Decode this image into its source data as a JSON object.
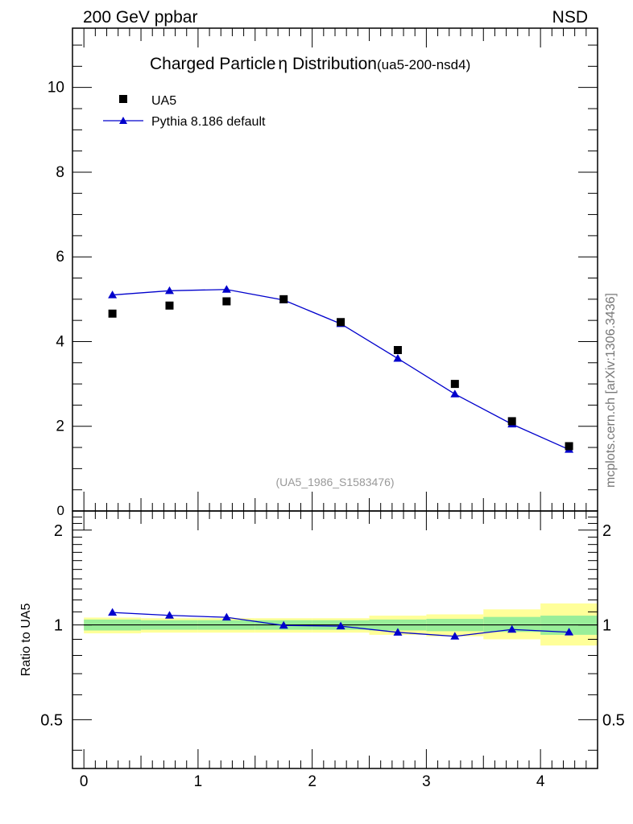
{
  "header": {
    "left": "200 GeV ppbar",
    "right": "NSD",
    "side": "mcplots.cern.ch [arXiv:1306.3436]"
  },
  "chart_data": [
    {
      "type": "scatter",
      "title": "Charged Particle",
      "title_symbol": "η",
      "title_rest": " Distribution",
      "title_tag": "(ua5-200-nsd4)",
      "watermark": "(UA5_1986_S1583476)",
      "xlim": [
        -0.1,
        4.5
      ],
      "ylim": [
        0,
        11.4
      ],
      "yticks": [
        2,
        4,
        6,
        8,
        10
      ],
      "ytick_labels": [
        "2",
        "4",
        "6",
        "8",
        "10"
      ],
      "y0_label": "0",
      "legend_position": "top-left",
      "x": [
        0.25,
        0.75,
        1.25,
        1.75,
        2.25,
        2.75,
        3.25,
        3.75,
        4.25
      ],
      "series": [
        {
          "name": "UA5",
          "marker": "square",
          "color": "#000000",
          "values": [
            4.66,
            4.85,
            4.95,
            5.0,
            4.46,
            3.8,
            3.0,
            2.12,
            1.53
          ]
        },
        {
          "name": "Pythia 8.186 default",
          "marker": "triangle",
          "color": "#0000cc",
          "values": [
            5.1,
            5.2,
            5.23,
            4.98,
            4.42,
            3.6,
            2.76,
            2.05,
            1.45
          ]
        }
      ]
    },
    {
      "type": "line",
      "ylabel": "Ratio to UA5",
      "xlim": [
        -0.1,
        4.5
      ],
      "ylim": [
        0.35,
        2.3
      ],
      "xticks": [
        0,
        1,
        2,
        3,
        4
      ],
      "xtick_labels": [
        "0",
        "1",
        "2",
        "3",
        "4"
      ],
      "yticks": [
        0.5,
        1,
        2
      ],
      "ytick_labels": [
        "0.5",
        "1",
        "2"
      ],
      "reference_line": 1,
      "x": [
        0.25,
        0.75,
        1.25,
        1.75,
        2.25,
        2.75,
        3.25,
        3.75,
        4.25
      ],
      "series": [
        {
          "name": "Pythia 8.186 default",
          "color": "#0000cc",
          "values": [
            1.095,
            1.072,
            1.057,
            0.996,
            0.991,
            0.947,
            0.92,
            0.967,
            0.948
          ]
        }
      ],
      "bands": {
        "bins": [
          [
            0,
            0.5
          ],
          [
            0.5,
            1
          ],
          [
            1,
            1.5
          ],
          [
            1.5,
            2
          ],
          [
            2,
            2.5
          ],
          [
            2.5,
            3
          ],
          [
            3,
            3.5
          ],
          [
            3.5,
            4
          ],
          [
            4,
            4.5
          ]
        ],
        "green_color": "#99ee99",
        "yellow_color": "#ffff99",
        "green": [
          [
            0.96,
            1.04
          ],
          [
            0.965,
            1.035
          ],
          [
            0.965,
            1.035
          ],
          [
            0.965,
            1.035
          ],
          [
            0.965,
            1.035
          ],
          [
            0.96,
            1.04
          ],
          [
            0.955,
            1.045
          ],
          [
            0.95,
            1.06
          ],
          [
            0.93,
            1.07
          ]
        ],
        "yellow": [
          [
            0.94,
            1.055
          ],
          [
            0.945,
            1.05
          ],
          [
            0.945,
            1.05
          ],
          [
            0.945,
            1.05
          ],
          [
            0.945,
            1.05
          ],
          [
            0.93,
            1.07
          ],
          [
            0.92,
            1.08
          ],
          [
            0.9,
            1.12
          ],
          [
            0.86,
            1.17
          ]
        ]
      }
    }
  ]
}
